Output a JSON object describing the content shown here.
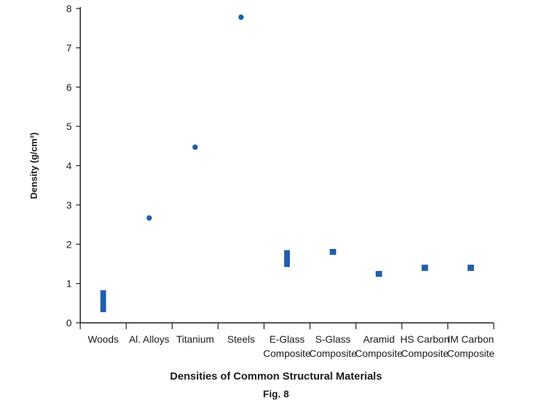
{
  "chart_data": {
    "type": "range",
    "title": "Densities of Common Structural Materials",
    "caption": "Fig. 8",
    "ylabel": "Density (g/cm³)",
    "xlabel": "",
    "ylim": [
      0,
      8
    ],
    "yticks": [
      "0",
      "1",
      "2",
      "3",
      "4",
      "5",
      "6",
      "7",
      "8"
    ],
    "grid": false,
    "color": "#1f5fad",
    "categories": [
      {
        "label": [
          "Woods"
        ],
        "marker": "bar",
        "low": 0.27,
        "high": 0.83
      },
      {
        "label": [
          "Al. Alloys"
        ],
        "marker": "dot",
        "low": 2.67,
        "high": 2.67
      },
      {
        "label": [
          "Titanium"
        ],
        "marker": "dot",
        "low": 4.47,
        "high": 4.47
      },
      {
        "label": [
          "Steels"
        ],
        "marker": "dot",
        "low": 7.78,
        "high": 7.78
      },
      {
        "label": [
          "E-Glass",
          "Composite"
        ],
        "marker": "bar",
        "low": 1.42,
        "high": 1.85
      },
      {
        "label": [
          "S-Glass",
          "Composite"
        ],
        "marker": "bar",
        "low": 1.73,
        "high": 1.88
      },
      {
        "label": [
          "Aramid",
          "Composite"
        ],
        "marker": "bar",
        "low": 1.17,
        "high": 1.32
      },
      {
        "label": [
          "HS Carbon",
          "Composite"
        ],
        "marker": "bar",
        "low": 1.32,
        "high": 1.48
      },
      {
        "label": [
          "IM Carbon",
          "Composite"
        ],
        "marker": "bar",
        "low": 1.32,
        "high": 1.48
      }
    ]
  }
}
